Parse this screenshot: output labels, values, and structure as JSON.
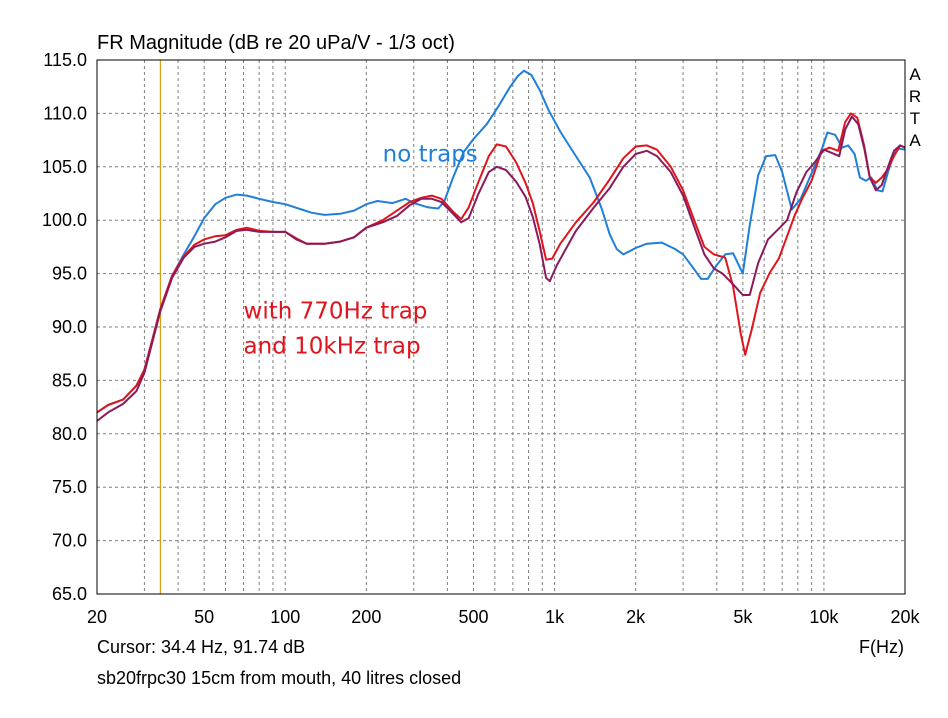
{
  "chart_data": {
    "type": "line",
    "title": "FR Magnitude (dB re 20 uPa/V - 1/3 oct)",
    "xlabel": "F(Hz)",
    "ylabel": "",
    "x_scale": "log",
    "xlim": [
      20,
      20000
    ],
    "ylim": [
      65,
      115
    ],
    "grid": true,
    "x_ticks": [
      20,
      50,
      100,
      200,
      500,
      1000,
      2000,
      5000,
      10000,
      20000
    ],
    "x_tick_labels": [
      "20",
      "50",
      "100",
      "200",
      "500",
      "1k",
      "2k",
      "5k",
      "10k",
      "20k"
    ],
    "y_ticks": [
      65,
      70,
      75,
      80,
      85,
      90,
      95,
      100,
      105,
      110,
      115
    ],
    "y_tick_labels": [
      "65.0",
      "70.0",
      "75.0",
      "80.0",
      "85.0",
      "90.0",
      "95.0",
      "100.0",
      "105.0",
      "110.0",
      "115.0"
    ],
    "cursor": {
      "x": 34.4,
      "y": 91.74,
      "color": "#d4a017"
    },
    "cursor_text": "Cursor: 34.4 Hz, 91.74 dB",
    "description": "sb20frpc30 15cm from mouth, 40 litres closed",
    "brand": [
      "A",
      "R",
      "T",
      "A"
    ],
    "annotations": [
      {
        "text": "no traps",
        "color": "#1f7fd9",
        "x": 230,
        "y": 105.5
      },
      {
        "text": "with 770Hz trap",
        "color": "#e0141c",
        "x": 70,
        "y": 90.8
      },
      {
        "text": "and 10kHz trap",
        "color": "#e0141c",
        "x": 70,
        "y": 87.5
      }
    ],
    "series": [
      {
        "color": "#1f7fd9",
        "points": [
          [
            20,
            82.0
          ],
          [
            22,
            82.7
          ],
          [
            25,
            83.2
          ],
          [
            28,
            84.5
          ],
          [
            30,
            86.0
          ],
          [
            34.4,
            91.7
          ],
          [
            38,
            94.8
          ],
          [
            42,
            96.8
          ],
          [
            46,
            98.5
          ],
          [
            50,
            100.2
          ],
          [
            55,
            101.5
          ],
          [
            60,
            102.1
          ],
          [
            66,
            102.4
          ],
          [
            72,
            102.3
          ],
          [
            80,
            102.0
          ],
          [
            90,
            101.7
          ],
          [
            100,
            101.5
          ],
          [
            115,
            101.0
          ],
          [
            125,
            100.7
          ],
          [
            140,
            100.5
          ],
          [
            160,
            100.6
          ],
          [
            180,
            100.9
          ],
          [
            200,
            101.5
          ],
          [
            220,
            101.8
          ],
          [
            250,
            101.6
          ],
          [
            280,
            102.0
          ],
          [
            300,
            101.6
          ],
          [
            340,
            101.2
          ],
          [
            370,
            101.1
          ],
          [
            390,
            101.8
          ],
          [
            420,
            104.0
          ],
          [
            460,
            106.4
          ],
          [
            500,
            107.6
          ],
          [
            560,
            109.0
          ],
          [
            620,
            110.7
          ],
          [
            680,
            112.4
          ],
          [
            730,
            113.5
          ],
          [
            770,
            114.0
          ],
          [
            820,
            113.6
          ],
          [
            880,
            112.2
          ],
          [
            950,
            110.3
          ],
          [
            1050,
            108.3
          ],
          [
            1200,
            106.0
          ],
          [
            1350,
            104.0
          ],
          [
            1500,
            101.0
          ],
          [
            1600,
            98.7
          ],
          [
            1700,
            97.3
          ],
          [
            1800,
            96.8
          ],
          [
            2000,
            97.4
          ],
          [
            2200,
            97.8
          ],
          [
            2500,
            97.9
          ],
          [
            2800,
            97.3
          ],
          [
            3000,
            96.8
          ],
          [
            3300,
            95.4
          ],
          [
            3500,
            94.5
          ],
          [
            3700,
            94.5
          ],
          [
            4000,
            95.8
          ],
          [
            4300,
            96.8
          ],
          [
            4600,
            96.9
          ],
          [
            5000,
            95.0
          ],
          [
            5300,
            99.5
          ],
          [
            5700,
            104.2
          ],
          [
            6100,
            106.0
          ],
          [
            6600,
            106.1
          ],
          [
            7000,
            104.5
          ],
          [
            7600,
            101.0
          ],
          [
            8200,
            102.0
          ],
          [
            9000,
            104.4
          ],
          [
            9800,
            106.6
          ],
          [
            10300,
            108.2
          ],
          [
            11000,
            108.0
          ],
          [
            11700,
            106.8
          ],
          [
            12300,
            107.0
          ],
          [
            13000,
            106.2
          ],
          [
            13600,
            104.0
          ],
          [
            14300,
            103.7
          ],
          [
            15000,
            104.0
          ],
          [
            15800,
            102.8
          ],
          [
            16500,
            102.7
          ],
          [
            17300,
            104.5
          ],
          [
            18200,
            106.2
          ],
          [
            19000,
            106.7
          ],
          [
            20000,
            106.6
          ]
        ]
      },
      {
        "color": "#e0141c",
        "points": [
          [
            20,
            82.0
          ],
          [
            22,
            82.7
          ],
          [
            25,
            83.2
          ],
          [
            28,
            84.5
          ],
          [
            30,
            86.0
          ],
          [
            34.4,
            91.7
          ],
          [
            38,
            94.8
          ],
          [
            42,
            96.6
          ],
          [
            46,
            97.7
          ],
          [
            50,
            98.2
          ],
          [
            55,
            98.5
          ],
          [
            60,
            98.6
          ],
          [
            66,
            99.1
          ],
          [
            72,
            99.3
          ],
          [
            80,
            99.0
          ],
          [
            90,
            98.9
          ],
          [
            100,
            98.9
          ],
          [
            110,
            98.3
          ],
          [
            120,
            97.8
          ],
          [
            140,
            97.8
          ],
          [
            160,
            98.0
          ],
          [
            180,
            98.4
          ],
          [
            200,
            99.3
          ],
          [
            230,
            100.0
          ],
          [
            260,
            100.9
          ],
          [
            290,
            101.7
          ],
          [
            320,
            102.1
          ],
          [
            350,
            102.3
          ],
          [
            380,
            102.0
          ],
          [
            420,
            100.8
          ],
          [
            450,
            100.1
          ],
          [
            480,
            101.2
          ],
          [
            520,
            103.5
          ],
          [
            570,
            106.0
          ],
          [
            610,
            107.1
          ],
          [
            660,
            106.9
          ],
          [
            720,
            105.4
          ],
          [
            780,
            103.5
          ],
          [
            830,
            101.6
          ],
          [
            880,
            99.0
          ],
          [
            930,
            96.3
          ],
          [
            980,
            96.4
          ],
          [
            1050,
            97.8
          ],
          [
            1200,
            99.8
          ],
          [
            1400,
            101.7
          ],
          [
            1600,
            103.8
          ],
          [
            1800,
            105.8
          ],
          [
            2000,
            106.9
          ],
          [
            2200,
            107.0
          ],
          [
            2400,
            106.6
          ],
          [
            2700,
            105.0
          ],
          [
            3000,
            102.8
          ],
          [
            3300,
            100.0
          ],
          [
            3600,
            97.5
          ],
          [
            3900,
            96.8
          ],
          [
            4300,
            96.5
          ],
          [
            4600,
            93.8
          ],
          [
            4900,
            89.5
          ],
          [
            5100,
            87.4
          ],
          [
            5400,
            89.8
          ],
          [
            5800,
            93.2
          ],
          [
            6300,
            95.1
          ],
          [
            6800,
            96.4
          ],
          [
            7300,
            98.5
          ],
          [
            7800,
            100.5
          ],
          [
            8300,
            102.0
          ],
          [
            9000,
            103.7
          ],
          [
            9800,
            106.5
          ],
          [
            10500,
            106.8
          ],
          [
            11300,
            106.5
          ],
          [
            12000,
            109.2
          ],
          [
            12600,
            110.0
          ],
          [
            13300,
            109.6
          ],
          [
            14100,
            107.0
          ],
          [
            14800,
            104.0
          ],
          [
            15600,
            103.5
          ],
          [
            16400,
            104.0
          ],
          [
            17300,
            104.8
          ],
          [
            18200,
            106.0
          ],
          [
            19200,
            107.0
          ],
          [
            20000,
            106.8
          ]
        ]
      },
      {
        "color": "#8b1a5a",
        "points": [
          [
            20,
            81.2
          ],
          [
            22,
            82.0
          ],
          [
            25,
            82.8
          ],
          [
            28,
            84.0
          ],
          [
            30,
            85.7
          ],
          [
            34.4,
            91.5
          ],
          [
            38,
            94.6
          ],
          [
            42,
            96.5
          ],
          [
            46,
            97.5
          ],
          [
            50,
            97.8
          ],
          [
            55,
            98.0
          ],
          [
            60,
            98.4
          ],
          [
            66,
            99.0
          ],
          [
            72,
            99.1
          ],
          [
            80,
            98.9
          ],
          [
            90,
            98.9
          ],
          [
            100,
            98.9
          ],
          [
            110,
            98.2
          ],
          [
            120,
            97.8
          ],
          [
            140,
            97.8
          ],
          [
            160,
            98.0
          ],
          [
            180,
            98.4
          ],
          [
            200,
            99.3
          ],
          [
            230,
            99.8
          ],
          [
            260,
            100.4
          ],
          [
            290,
            101.4
          ],
          [
            320,
            102.0
          ],
          [
            350,
            102.0
          ],
          [
            380,
            101.7
          ],
          [
            420,
            100.6
          ],
          [
            450,
            99.8
          ],
          [
            480,
            100.2
          ],
          [
            520,
            102.4
          ],
          [
            570,
            104.5
          ],
          [
            610,
            105.0
          ],
          [
            660,
            104.7
          ],
          [
            720,
            103.6
          ],
          [
            780,
            102.2
          ],
          [
            830,
            100.3
          ],
          [
            880,
            97.8
          ],
          [
            930,
            94.6
          ],
          [
            960,
            94.3
          ],
          [
            1020,
            95.8
          ],
          [
            1200,
            99.0
          ],
          [
            1400,
            101.2
          ],
          [
            1600,
            103.0
          ],
          [
            1800,
            105.0
          ],
          [
            2000,
            106.2
          ],
          [
            2200,
            106.5
          ],
          [
            2400,
            106.0
          ],
          [
            2700,
            104.5
          ],
          [
            3000,
            102.3
          ],
          [
            3300,
            99.4
          ],
          [
            3600,
            96.8
          ],
          [
            3900,
            95.5
          ],
          [
            4200,
            95.0
          ],
          [
            4600,
            94.0
          ],
          [
            5000,
            93.0
          ],
          [
            5300,
            93.0
          ],
          [
            5700,
            96.0
          ],
          [
            6200,
            98.2
          ],
          [
            6800,
            99.2
          ],
          [
            7300,
            100.0
          ],
          [
            7900,
            102.6
          ],
          [
            8600,
            104.5
          ],
          [
            9300,
            105.5
          ],
          [
            10000,
            106.6
          ],
          [
            10700,
            106.3
          ],
          [
            11400,
            106.0
          ],
          [
            12000,
            108.5
          ],
          [
            12700,
            109.7
          ],
          [
            13400,
            109.0
          ],
          [
            14100,
            106.8
          ],
          [
            14800,
            104.0
          ],
          [
            15600,
            102.8
          ],
          [
            16400,
            103.3
          ],
          [
            17300,
            105.0
          ],
          [
            18200,
            106.5
          ],
          [
            19200,
            107.0
          ],
          [
            20000,
            106.8
          ]
        ]
      }
    ]
  }
}
